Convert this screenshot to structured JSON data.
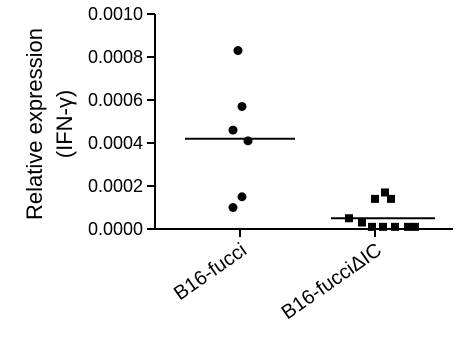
{
  "chart_data": {
    "type": "scatter",
    "ylabel_line1": "Relative expression",
    "ylabel_line2": "(IFN-γ)",
    "ylim": [
      0,
      0.001
    ],
    "yticks": [
      "0.0000",
      "0.0002",
      "0.0004",
      "0.0006",
      "0.0008",
      "0.0010"
    ],
    "ytick_values": [
      0,
      0.0002,
      0.0004,
      0.0006,
      0.0008,
      0.001
    ],
    "categories": [
      "B16-fucci",
      "B16-fucciΔIC"
    ],
    "series": [
      {
        "marker": "circle",
        "values": [
          0.00083,
          0.00057,
          0.00046,
          0.00041,
          0.00015,
          0.0001
        ],
        "mean": 0.00042
      },
      {
        "marker": "square",
        "values": [
          0.00017,
          0.00014,
          0.00014,
          5e-05,
          3e-05,
          1e-05,
          1e-05,
          1e-05,
          1e-05,
          1e-05
        ],
        "mean": 5e-05
      }
    ],
    "colors": {
      "marker": "#000000",
      "axis": "#000000"
    }
  }
}
